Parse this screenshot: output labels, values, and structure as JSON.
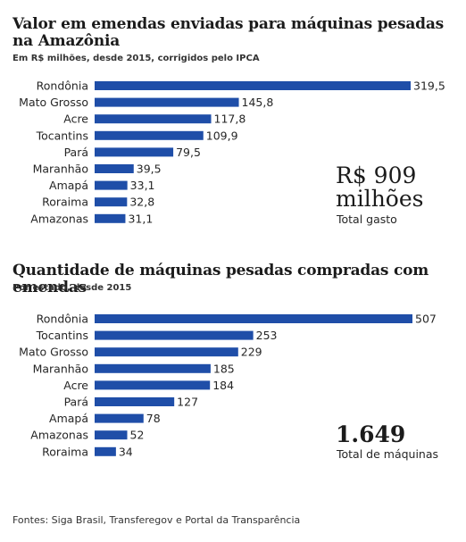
{
  "chart_data": [
    {
      "type": "bar",
      "orientation": "horizontal",
      "title": "Valor em emendas enviadas para máquinas pesadas na Amazônia",
      "subtitle": "Em R$ milhões, desde 2015, corrigidos pelo IPCA",
      "categories": [
        "Rondônia",
        "Mato Grosso",
        "Acre",
        "Tocantins",
        "Pará",
        "Maranhão",
        "Amapá",
        "Roraima",
        "Amazonas"
      ],
      "values": [
        319.5,
        145.8,
        117.8,
        109.9,
        79.5,
        39.5,
        33.1,
        32.8,
        31.1
      ],
      "value_labels": [
        "319,5",
        "145,8",
        "117,8",
        "109,9",
        "79,5",
        "39,5",
        "33,1",
        "32,8",
        "31,1"
      ],
      "xlim": [
        0,
        319.5
      ],
      "grid": false,
      "bar_color": "#1f4ea8",
      "total_value": "R$ 909 milhões",
      "total_label": "Total gasto"
    },
    {
      "type": "bar",
      "orientation": "horizontal",
      "title": "Quantidade de máquinas pesadas compradas com emendas",
      "subtitle": "Por estado, desde 2015",
      "categories": [
        "Rondônia",
        "Tocantins",
        "Mato Grosso",
        "Maranhão",
        "Acre",
        "Pará",
        "Amapá",
        "Amazonas",
        "Roraima"
      ],
      "values": [
        507,
        253,
        229,
        185,
        184,
        127,
        78,
        52,
        34
      ],
      "value_labels": [
        "507",
        "253",
        "229",
        "185",
        "184",
        "127",
        "78",
        "52",
        "34"
      ],
      "xlim": [
        0,
        507
      ],
      "grid": false,
      "bar_color": "#1f4ea8",
      "total_value": "1.649",
      "total_label": "Total de máquinas"
    }
  ],
  "footer": {
    "source": "Fontes: Siga Brasil, Transferegov e Portal da Transparência"
  }
}
